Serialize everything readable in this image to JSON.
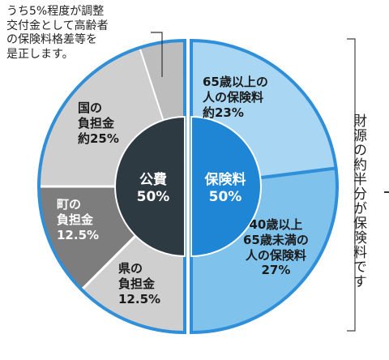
{
  "chart_data": {
    "type": "pie",
    "slices": [
      {
        "name": "国の負担金",
        "value": 25,
        "label_lines": [
          "国の",
          "負担金",
          "約25%"
        ],
        "color": "#cfcfcf",
        "group": "public"
      },
      {
        "name": "町の負担金",
        "value": 12.5,
        "label_lines": [
          "町の",
          "負担金",
          "12.5%"
        ],
        "color": "#7d7d7d",
        "group": "public"
      },
      {
        "name": "県の負担金",
        "value": 12.5,
        "label_lines": [
          "県の",
          "負担金",
          "12.5%"
        ],
        "color": "#cfcfcf",
        "group": "public"
      },
      {
        "name": "65歳以上の人の保険料",
        "value": 23,
        "label_lines": [
          "65歳以上の",
          "人の保険料",
          "約23%"
        ],
        "color": "#a9d6f2",
        "group": "insurance"
      },
      {
        "name": "40歳以上65歳未満の人の保険料",
        "value": 27,
        "label_lines": [
          "40歳以上",
          "65歳未満の",
          "人の保険料",
          "27%"
        ],
        "color": "#7fc2ec",
        "group": "insurance"
      }
    ],
    "inner": {
      "public": {
        "label": "公費",
        "value": "50%",
        "color": "#2d3a42"
      },
      "insurance": {
        "label": "保険料",
        "value": "50%",
        "color": "#1e86d4"
      }
    },
    "adjustment_slice": {
      "value": 5,
      "color": "#bdbdbd"
    },
    "annotation": [
      "うち5%程度が調整",
      "交付金として高齢者",
      "の保険料格差等を",
      "是正します。"
    ],
    "side_note": "財源の約半分が保険料です",
    "colors": {
      "outline_blue": "#2f8fd8",
      "outline_gray": "#555555"
    }
  }
}
